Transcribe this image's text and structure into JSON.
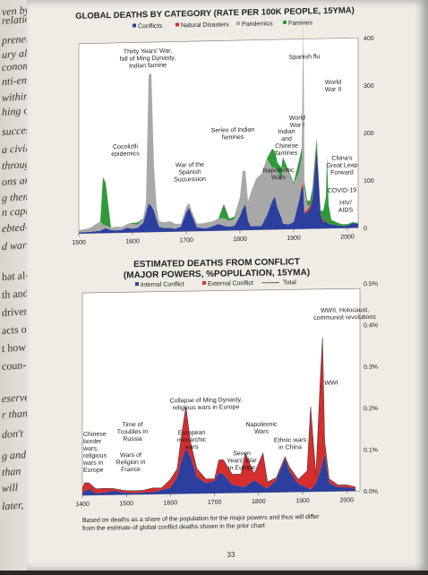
{
  "left_page": {
    "fragments": [
      {
        "text": "ven by",
        "italic": true
      },
      {
        "text": "relation",
        "italic": true
      },
      {
        "text": "preneur.",
        "italic": true
      },
      {
        "text": "ury also",
        "italic": true
      },
      {
        "text": "conomic",
        "italic": true
      },
      {
        "text": "nti-empi",
        "italic": true
      },
      {
        "text": "within",
        "italic": true
      },
      {
        "text": "hing or",
        "italic": true
      },
      {
        "text": "success",
        "italic": true
      },
      {
        "text": "a civiliz",
        "italic": true
      },
      {
        "text": "through",
        "italic": true
      },
      {
        "text": "ons are",
        "italic": true
      },
      {
        "text": "g them",
        "italic": true
      },
      {
        "text": "n capi-",
        "italic": true
      },
      {
        "text": "ebted-",
        "italic": true
      },
      {
        "text": "d wars",
        "italic": true
      },
      {
        "text": "hat al-",
        "italic": false
      },
      {
        "text": "th and",
        "italic": false
      },
      {
        "text": "driven",
        "italic": false
      },
      {
        "text": "acts of",
        "italic": false
      },
      {
        "text": "t how",
        "italic": false
      },
      {
        "text": "coun-",
        "italic": false
      },
      {
        "text": "eserve",
        "italic": true
      },
      {
        "text": "r than",
        "italic": true
      },
      {
        "text": "don't",
        "italic": true
      },
      {
        "text": "g and",
        "italic": true
      },
      {
        "text": "than",
        "italic": true
      },
      {
        "text": "will",
        "italic": true
      },
      {
        "text": "later,",
        "italic": true
      }
    ]
  },
  "chart_data": [
    {
      "type": "area",
      "title": "GLOBAL DEATHS BY CATEGORY (RATE PER 100K PEOPLE, 15YMA)",
      "legend_position": "top",
      "colors": {
        "Conflicts": "#2b3f9e",
        "Natural Disasters": "#d62d2d",
        "Pandemics": "#a8a8a8",
        "Famines": "#2e9a3a"
      },
      "x_ticks": [
        "1500",
        "1600",
        "1700",
        "1800",
        "1900",
        "2000"
      ],
      "y_ticks": [
        "0",
        "100",
        "200",
        "300",
        "400"
      ],
      "xlim": [
        1500,
        2020
      ],
      "ylim": [
        0,
        400
      ],
      "stack_order": [
        "Conflicts",
        "Natural Disasters",
        "Pandemics",
        "Famines"
      ],
      "x": [
        1500,
        1520,
        1540,
        1545,
        1550,
        1560,
        1570,
        1580,
        1590,
        1600,
        1610,
        1620,
        1625,
        1630,
        1635,
        1640,
        1645,
        1650,
        1660,
        1670,
        1680,
        1690,
        1700,
        1705,
        1710,
        1720,
        1730,
        1740,
        1750,
        1760,
        1770,
        1780,
        1790,
        1800,
        1805,
        1810,
        1815,
        1820,
        1830,
        1840,
        1850,
        1860,
        1865,
        1870,
        1877,
        1880,
        1890,
        1900,
        1910,
        1915,
        1918,
        1920,
        1925,
        1930,
        1935,
        1940,
        1943,
        1945,
        1950,
        1955,
        1960,
        1962,
        1965,
        1970,
        1980,
        1990,
        2000,
        2010,
        2020
      ],
      "series": [
        {
          "name": "Conflicts",
          "values": [
            2,
            3,
            5,
            8,
            10,
            6,
            5,
            6,
            10,
            8,
            10,
            20,
            40,
            60,
            55,
            45,
            25,
            10,
            8,
            8,
            6,
            10,
            40,
            50,
            35,
            8,
            6,
            6,
            10,
            14,
            10,
            8,
            10,
            30,
            45,
            55,
            20,
            8,
            8,
            8,
            30,
            60,
            70,
            45,
            25,
            12,
            10,
            15,
            60,
            90,
            80,
            30,
            35,
            40,
            60,
            130,
            170,
            130,
            30,
            14,
            14,
            12,
            10,
            8,
            6,
            4,
            5,
            10,
            8
          ]
        },
        {
          "name": "Natural Disasters",
          "values": [
            0,
            0,
            0,
            0,
            0,
            0,
            0,
            0,
            0,
            0,
            0,
            0,
            0,
            0,
            0,
            0,
            0,
            0,
            0,
            0,
            0,
            0,
            0,
            0,
            0,
            0,
            0,
            0,
            0,
            0,
            0,
            0,
            0,
            0,
            0,
            0,
            0,
            0,
            0,
            0,
            0,
            0,
            0,
            0,
            0,
            0,
            0,
            0,
            0,
            0,
            15,
            5,
            5,
            8,
            5,
            5,
            5,
            5,
            3,
            3,
            3,
            0,
            0,
            0,
            0,
            0,
            0,
            0,
            0
          ]
        },
        {
          "name": "Pandemics",
          "values": [
            5,
            8,
            20,
            10,
            6,
            5,
            8,
            6,
            8,
            10,
            6,
            10,
            20,
            270,
            280,
            90,
            25,
            12,
            12,
            14,
            10,
            6,
            12,
            10,
            8,
            8,
            10,
            12,
            10,
            12,
            16,
            12,
            14,
            40,
            80,
            70,
            40,
            70,
            100,
            110,
            120,
            70,
            60,
            80,
            75,
            120,
            110,
            80,
            60,
            60,
            330,
            50,
            10,
            0,
            0,
            0,
            0,
            0,
            0,
            0,
            0,
            0,
            0,
            0,
            0,
            0,
            0,
            0,
            0
          ]
        },
        {
          "name": "Famines",
          "values": [
            0,
            0,
            0,
            100,
            90,
            0,
            0,
            0,
            0,
            2,
            5,
            0,
            0,
            0,
            0,
            0,
            0,
            0,
            0,
            0,
            0,
            0,
            0,
            0,
            0,
            0,
            0,
            0,
            0,
            0,
            30,
            5,
            5,
            0,
            0,
            0,
            0,
            0,
            0,
            0,
            0,
            40,
            35,
            15,
            30,
            20,
            5,
            3,
            25,
            20,
            10,
            15,
            10,
            10,
            20,
            20,
            15,
            5,
            5,
            20,
            50,
            140,
            40,
            10,
            6,
            4,
            3,
            2,
            2
          ]
        }
      ],
      "annotations": [
        {
          "text": [
            "Thirty Years' War,",
            "fall of Ming Dynasty,",
            "Indian famine"
          ]
        },
        {
          "text": [
            "Spanish flu"
          ]
        },
        {
          "text": [
            "World",
            "War II"
          ]
        },
        {
          "text": [
            "World",
            "War I"
          ]
        },
        {
          "text": [
            "Series of Indian",
            "famines"
          ]
        },
        {
          "text": [
            "Indian",
            "and",
            "Chinese",
            "famines"
          ]
        },
        {
          "text": [
            "Cocoliztli",
            "epidemics"
          ]
        },
        {
          "text": [
            "War of the",
            "Spanish",
            "Succession"
          ]
        },
        {
          "text": [
            "Napoleonic",
            "Wars"
          ]
        },
        {
          "text": [
            "China's",
            "Great Leap",
            "Forward"
          ]
        },
        {
          "text": [
            "COVID-19"
          ]
        },
        {
          "text": [
            "HIV/",
            "AIDS"
          ]
        }
      ]
    },
    {
      "type": "area",
      "title": [
        "ESTIMATED DEATHS FROM CONFLICT",
        "(MAJOR POWERS, %POPULATION, 15YMA)"
      ],
      "legend_position": "top",
      "colors": {
        "Internal Conflict": "#2b3f9e",
        "External Conflict": "#d62d2d",
        "Total": "#444444"
      },
      "x_ticks": [
        "1400",
        "1500",
        "1600",
        "1700",
        "1800",
        "1900",
        "2000"
      ],
      "y_ticks": [
        "0.0%",
        "0.1%",
        "0.2%",
        "0.3%",
        "0.4%",
        "0.5%"
      ],
      "xlim": [
        1400,
        2030
      ],
      "ylim": [
        0,
        0.5
      ],
      "x": [
        1400,
        1405,
        1415,
        1430,
        1450,
        1470,
        1490,
        1500,
        1520,
        1540,
        1560,
        1580,
        1600,
        1615,
        1625,
        1635,
        1645,
        1660,
        1680,
        1700,
        1710,
        1720,
        1740,
        1760,
        1770,
        1790,
        1810,
        1820,
        1840,
        1860,
        1870,
        1890,
        1910,
        1918,
        1930,
        1940,
        1945,
        1950,
        1960,
        1980,
        2000,
        2020
      ],
      "series": [
        {
          "name": "Internal Conflict",
          "values": [
            0.005,
            0.01,
            0.015,
            0.005,
            0.006,
            0.01,
            0.006,
            0.005,
            0.004,
            0.005,
            0.005,
            0.01,
            0.015,
            0.04,
            0.08,
            0.11,
            0.09,
            0.04,
            0.025,
            0.03,
            0.05,
            0.045,
            0.02,
            0.015,
            0.015,
            0.03,
            0.015,
            0.01,
            0.03,
            0.08,
            0.05,
            0.02,
            0.01,
            0.005,
            0.02,
            0.05,
            0.07,
            0.09,
            0.02,
            0.01,
            0.01,
            0.005
          ]
        },
        {
          "name": "External Conflict",
          "values": [
            0.01,
            0.02,
            0.015,
            0.01,
            0.01,
            0.005,
            0.005,
            0.005,
            0.005,
            0.005,
            0.01,
            0.005,
            0.02,
            0.02,
            0.06,
            0.1,
            0.035,
            0.02,
            0.01,
            0.005,
            0.03,
            0.035,
            0.025,
            0.03,
            0.08,
            0.015,
            0.08,
            0.015,
            0.005,
            0.005,
            0.01,
            0.01,
            0.04,
            0.2,
            0.02,
            0.22,
            0.3,
            0.03,
            0.01,
            0.005,
            0.005,
            0.005
          ]
        }
      ],
      "annotations": [
        {
          "text": [
            "WWII, Holocaust,",
            "communist revolutions"
          ]
        },
        {
          "text": [
            "WWI"
          ]
        },
        {
          "text": [
            "Collapse of Ming Dynasty,",
            "religious wars in Europe"
          ]
        },
        {
          "text": [
            "Time of",
            "Troubles in",
            "Russia"
          ]
        },
        {
          "text": [
            "Napoleonic",
            "Wars"
          ]
        },
        {
          "text": [
            "Chinese",
            "border",
            "wars,",
            "religious",
            "wars in",
            "Europe"
          ]
        },
        {
          "text": [
            "Wars of",
            "Religion in",
            "France"
          ]
        },
        {
          "text": [
            "European",
            "monarchic",
            "wars"
          ]
        },
        {
          "text": [
            "Seven",
            "Years' War",
            "in Europe"
          ]
        },
        {
          "text": [
            "Ethnic wars",
            "in China"
          ]
        }
      ],
      "note": [
        "Based on deaths as a share of the population for the major powers and thus will differ",
        "from the estimate of global conflict deaths shown in the prior chart"
      ]
    }
  ],
  "page_number": "33"
}
